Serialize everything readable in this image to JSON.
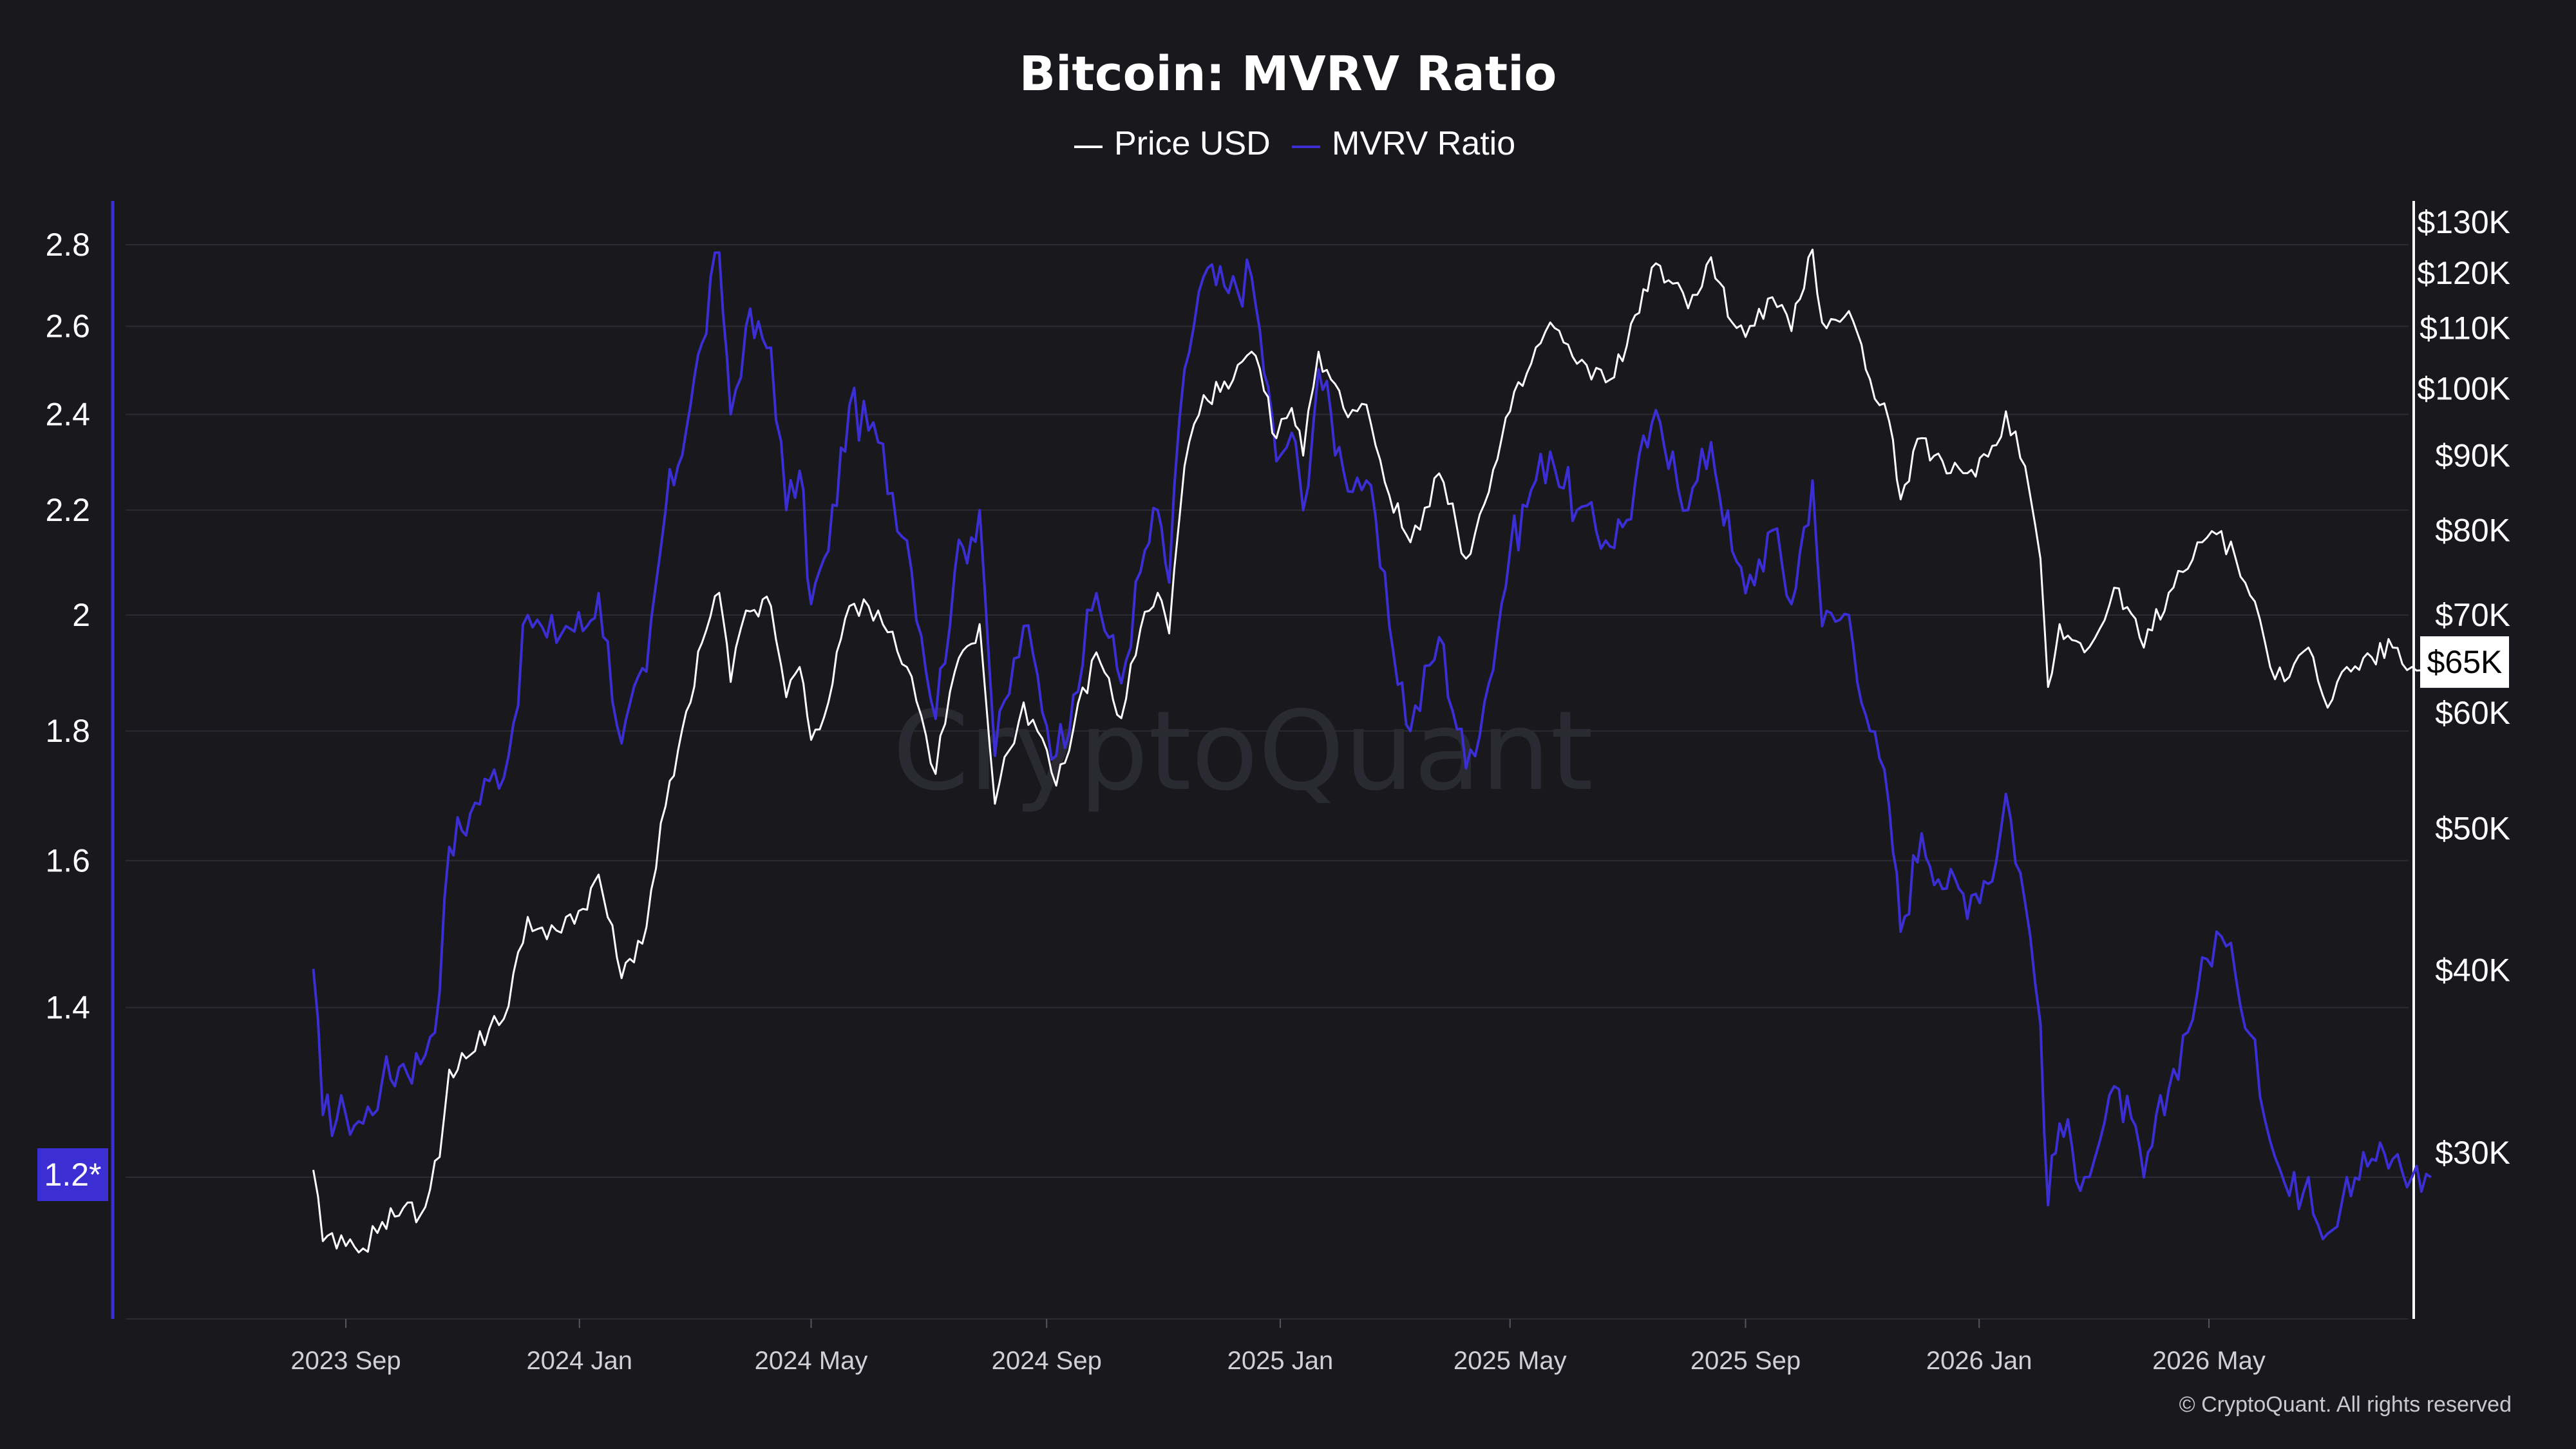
{
  "colors": {
    "background": "#18181d",
    "grid": "#2b2b33",
    "price": "#ffffff",
    "mvrv": "#3b2ed3",
    "mvrv_badge": "#3b2ed3",
    "price_badge_bg": "#ffffff",
    "price_badge_text": "#000000"
  },
  "chart_data": {
    "type": "line",
    "title": "Bitcoin: MVRV Ratio",
    "legend": {
      "placement": "top-center",
      "entries": [
        "Price USD",
        "MVRV Ratio"
      ]
    },
    "watermark": "CryptoQuant",
    "copyright": "© CryptoQuant. All rights reserved",
    "x_ticks": [
      "2023 Sep",
      "2024 Jan",
      "2024 May",
      "2024 Sep",
      "2025 Jan",
      "2025 May",
      "2025 Sep",
      "2026 Jan",
      "2026 May"
    ],
    "y_left": {
      "label": "",
      "scale": "log",
      "ticks": [
        "2.8",
        "2.6",
        "2.4",
        "2.2",
        "2",
        "1.8",
        "1.6",
        "1.4",
        "1.2"
      ],
      "current": "1.2*"
    },
    "y_right": {
      "label": "",
      "scale": "log",
      "ticks": [
        "$130K",
        "$120K",
        "$110K",
        "$100K",
        "$90K",
        "$80K",
        "$70K",
        "$60K",
        "$50K",
        "$40K",
        "$30K"
      ],
      "current": "$65K"
    },
    "grid": true,
    "series": [
      {
        "name": "Price USD",
        "axis": "right",
        "points": [
          [
            "2023-08-15",
            29200
          ],
          [
            "2023-08-20",
            26100
          ],
          [
            "2023-09-01",
            25900
          ],
          [
            "2023-09-10",
            25800
          ],
          [
            "2023-09-20",
            26900
          ],
          [
            "2023-10-01",
            27500
          ],
          [
            "2023-10-10",
            27200
          ],
          [
            "2023-10-20",
            29800
          ],
          [
            "2023-10-25",
            34200
          ],
          [
            "2023-11-05",
            35000
          ],
          [
            "2023-11-15",
            36500
          ],
          [
            "2023-11-25",
            37800
          ],
          [
            "2023-12-05",
            43500
          ],
          [
            "2023-12-15",
            42000
          ],
          [
            "2023-12-25",
            43500
          ],
          [
            "2024-01-05",
            44000
          ],
          [
            "2024-01-11",
            46500
          ],
          [
            "2024-01-23",
            39500
          ],
          [
            "2024-02-05",
            42800
          ],
          [
            "2024-02-15",
            51800
          ],
          [
            "2024-02-28",
            61000
          ],
          [
            "2024-03-05",
            67000
          ],
          [
            "2024-03-14",
            72500
          ],
          [
            "2024-03-20",
            63000
          ],
          [
            "2024-03-28",
            70500
          ],
          [
            "2024-04-10",
            71000
          ],
          [
            "2024-04-18",
            61500
          ],
          [
            "2024-04-25",
            64500
          ],
          [
            "2024-05-01",
            57500
          ],
          [
            "2024-05-10",
            61000
          ],
          [
            "2024-05-21",
            71000
          ],
          [
            "2024-06-05",
            70500
          ],
          [
            "2024-06-20",
            64500
          ],
          [
            "2024-07-05",
            54500
          ],
          [
            "2024-07-15",
            64000
          ],
          [
            "2024-07-28",
            69000
          ],
          [
            "2024-08-05",
            52000
          ],
          [
            "2024-08-20",
            61000
          ],
          [
            "2024-09-06",
            53500
          ],
          [
            "2024-09-15",
            58500
          ],
          [
            "2024-09-27",
            66000
          ],
          [
            "2024-10-10",
            59500
          ],
          [
            "2024-10-20",
            68500
          ],
          [
            "2024-10-29",
            72500
          ],
          [
            "2024-11-04",
            68000
          ],
          [
            "2024-11-12",
            88500
          ],
          [
            "2024-11-22",
            99000
          ],
          [
            "2024-12-05",
            100000
          ],
          [
            "2024-12-17",
            106000
          ],
          [
            "2024-12-30",
            92500
          ],
          [
            "2025-01-07",
            97000
          ],
          [
            "2025-01-13",
            90000
          ],
          [
            "2025-01-21",
            106000
          ],
          [
            "2025-02-03",
            97000
          ],
          [
            "2025-02-15",
            97500
          ],
          [
            "2025-02-27",
            84500
          ],
          [
            "2025-03-10",
            78500
          ],
          [
            "2025-03-25",
            87500
          ],
          [
            "2025-04-08",
            76500
          ],
          [
            "2025-04-20",
            85000
          ],
          [
            "2025-05-01",
            96500
          ],
          [
            "2025-05-12",
            104000
          ],
          [
            "2025-05-22",
            111000
          ],
          [
            "2025-06-05",
            104000
          ],
          [
            "2025-06-20",
            101000
          ],
          [
            "2025-07-01",
            107000
          ],
          [
            "2025-07-14",
            121000
          ],
          [
            "2025-07-25",
            118000
          ],
          [
            "2025-08-02",
            113500
          ],
          [
            "2025-08-14",
            123000
          ],
          [
            "2025-08-25",
            111000
          ],
          [
            "2025-09-01",
            108500
          ],
          [
            "2025-09-15",
            115500
          ],
          [
            "2025-09-25",
            109500
          ],
          [
            "2025-10-06",
            124500
          ],
          [
            "2025-10-11",
            111000
          ],
          [
            "2025-10-25",
            113000
          ],
          [
            "2025-11-05",
            101500
          ],
          [
            "2025-11-15",
            95000
          ],
          [
            "2025-11-21",
            84000
          ],
          [
            "2025-12-02",
            92500
          ],
          [
            "2025-12-15",
            87500
          ],
          [
            "2025-12-28",
            88000
          ],
          [
            "2026-01-10",
            91500
          ],
          [
            "2026-01-15",
            96500
          ],
          [
            "2026-01-25",
            88500
          ],
          [
            "2026-02-02",
            76500
          ],
          [
            "2026-02-06",
            62500
          ],
          [
            "2026-02-12",
            69000
          ],
          [
            "2026-02-25",
            66000
          ],
          [
            "2026-03-05",
            68500
          ],
          [
            "2026-03-15",
            73000
          ],
          [
            "2026-03-28",
            66500
          ],
          [
            "2026-04-10",
            72500
          ],
          [
            "2026-04-25",
            78500
          ],
          [
            "2026-05-05",
            79500
          ],
          [
            "2026-05-15",
            76500
          ],
          [
            "2026-05-25",
            71500
          ],
          [
            "2026-06-02",
            64500
          ],
          [
            "2026-06-12",
            63500
          ],
          [
            "2026-06-22",
            66500
          ],
          [
            "2026-07-02",
            60500
          ],
          [
            "2026-07-12",
            64500
          ],
          [
            "2026-07-25",
            65500
          ],
          [
            "2026-08-05",
            66500
          ],
          [
            "2026-08-15",
            64500
          ],
          [
            "2026-08-25",
            65500
          ]
        ]
      },
      {
        "name": "MVRV Ratio",
        "axis": "left",
        "points": [
          [
            "2023-08-15",
            1.45
          ],
          [
            "2023-08-20",
            1.27
          ],
          [
            "2023-09-01",
            1.27
          ],
          [
            "2023-09-10",
            1.26
          ],
          [
            "2023-09-20",
            1.31
          ],
          [
            "2023-10-01",
            1.33
          ],
          [
            "2023-10-10",
            1.33
          ],
          [
            "2023-10-20",
            1.42
          ],
          [
            "2023-10-25",
            1.62
          ],
          [
            "2023-11-05",
            1.67
          ],
          [
            "2023-11-15",
            1.72
          ],
          [
            "2023-11-25",
            1.76
          ],
          [
            "2023-12-05",
            2.0
          ],
          [
            "2023-12-15",
            1.96
          ],
          [
            "2023-12-25",
            1.98
          ],
          [
            "2024-01-05",
            1.98
          ],
          [
            "2024-01-11",
            2.04
          ],
          [
            "2024-01-23",
            1.78
          ],
          [
            "2024-02-05",
            1.9
          ],
          [
            "2024-02-15",
            2.2
          ],
          [
            "2024-02-28",
            2.42
          ],
          [
            "2024-03-05",
            2.56
          ],
          [
            "2024-03-14",
            2.78
          ],
          [
            "2024-03-20",
            2.4
          ],
          [
            "2024-03-28",
            2.6
          ],
          [
            "2024-04-10",
            2.55
          ],
          [
            "2024-04-18",
            2.2
          ],
          [
            "2024-04-25",
            2.28
          ],
          [
            "2024-05-01",
            2.02
          ],
          [
            "2024-05-10",
            2.12
          ],
          [
            "2024-05-21",
            2.42
          ],
          [
            "2024-06-05",
            2.34
          ],
          [
            "2024-06-20",
            2.14
          ],
          [
            "2024-07-05",
            1.82
          ],
          [
            "2024-07-15",
            2.08
          ],
          [
            "2024-07-28",
            2.2
          ],
          [
            "2024-08-05",
            1.76
          ],
          [
            "2024-08-20",
            1.98
          ],
          [
            "2024-09-06",
            1.76
          ],
          [
            "2024-09-15",
            1.86
          ],
          [
            "2024-09-27",
            2.04
          ],
          [
            "2024-10-10",
            1.88
          ],
          [
            "2024-10-20",
            2.08
          ],
          [
            "2024-10-29",
            2.2
          ],
          [
            "2024-11-04",
            2.06
          ],
          [
            "2024-11-12",
            2.5
          ],
          [
            "2024-11-22",
            2.72
          ],
          [
            "2024-12-05",
            2.68
          ],
          [
            "2024-12-17",
            2.72
          ],
          [
            "2024-12-30",
            2.3
          ],
          [
            "2025-01-07",
            2.36
          ],
          [
            "2025-01-13",
            2.2
          ],
          [
            "2025-01-21",
            2.5
          ],
          [
            "2025-02-03",
            2.28
          ],
          [
            "2025-02-15",
            2.26
          ],
          [
            "2025-02-27",
            1.98
          ],
          [
            "2025-03-10",
            1.8
          ],
          [
            "2025-03-25",
            1.96
          ],
          [
            "2025-04-08",
            1.74
          ],
          [
            "2025-04-20",
            1.88
          ],
          [
            "2025-05-01",
            2.12
          ],
          [
            "2025-05-12",
            2.24
          ],
          [
            "2025-05-22",
            2.32
          ],
          [
            "2025-06-05",
            2.2
          ],
          [
            "2025-06-20",
            2.14
          ],
          [
            "2025-07-01",
            2.18
          ],
          [
            "2025-07-14",
            2.38
          ],
          [
            "2025-07-25",
            2.32
          ],
          [
            "2025-08-02",
            2.2
          ],
          [
            "2025-08-14",
            2.34
          ],
          [
            "2025-08-25",
            2.12
          ],
          [
            "2025-09-01",
            2.04
          ],
          [
            "2025-09-15",
            2.16
          ],
          [
            "2025-09-25",
            2.02
          ],
          [
            "2025-10-06",
            2.26
          ],
          [
            "2025-10-11",
            1.98
          ],
          [
            "2025-10-25",
            2.0
          ],
          [
            "2025-11-05",
            1.8
          ],
          [
            "2025-11-15",
            1.68
          ],
          [
            "2025-11-21",
            1.5
          ],
          [
            "2025-12-02",
            1.64
          ],
          [
            "2025-12-15",
            1.56
          ],
          [
            "2025-12-28",
            1.55
          ],
          [
            "2026-01-10",
            1.6
          ],
          [
            "2026-01-15",
            1.7
          ],
          [
            "2026-01-25",
            1.54
          ],
          [
            "2026-02-02",
            1.38
          ],
          [
            "2026-02-06",
            1.17
          ],
          [
            "2026-02-12",
            1.26
          ],
          [
            "2026-02-25",
            1.2
          ],
          [
            "2026-03-05",
            1.24
          ],
          [
            "2026-03-15",
            1.3
          ],
          [
            "2026-03-28",
            1.2
          ],
          [
            "2026-04-10",
            1.3
          ],
          [
            "2026-04-25",
            1.42
          ],
          [
            "2026-05-05",
            1.5
          ],
          [
            "2026-05-15",
            1.44
          ],
          [
            "2026-05-25",
            1.36
          ],
          [
            "2026-06-02",
            1.24
          ],
          [
            "2026-06-12",
            1.18
          ],
          [
            "2026-06-22",
            1.2
          ],
          [
            "2026-07-02",
            1.14
          ],
          [
            "2026-07-12",
            1.2
          ],
          [
            "2026-07-25",
            1.22
          ],
          [
            "2026-08-05",
            1.22
          ],
          [
            "2026-08-15",
            1.2
          ],
          [
            "2026-08-25",
            1.2
          ]
        ]
      }
    ]
  }
}
